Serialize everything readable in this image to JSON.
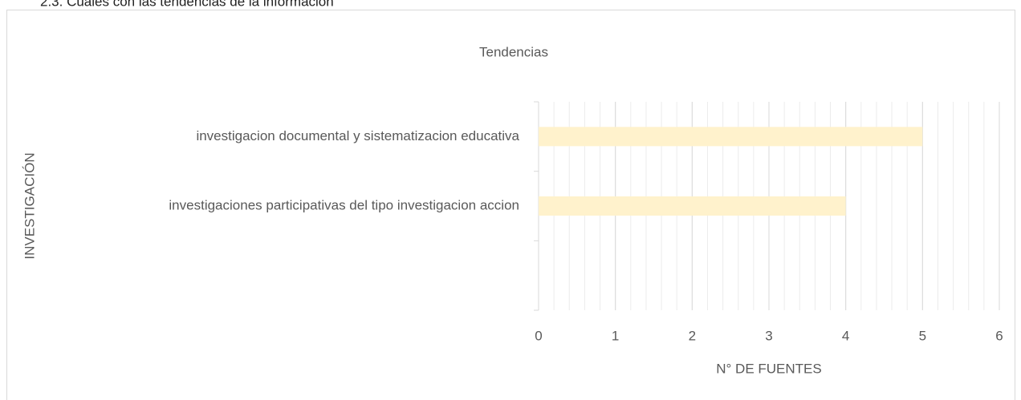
{
  "document": {
    "heading": "2.3. Cuales con las tendencias de la información"
  },
  "chart_data": {
    "type": "barh",
    "title": "Tendencias",
    "categories": [
      "investigacion documental y sistematizacion educativa",
      "investigaciones participativas del tipo investigacion accion",
      null
    ],
    "values": [
      5,
      4,
      null
    ],
    "color": "#fff2cc",
    "xlabel": "N° DE FUENTES",
    "ylabel": "INVESTIGACIÓN",
    "xlim": [
      0,
      6
    ],
    "xticks": [
      0,
      1,
      2,
      3,
      4,
      5,
      6
    ],
    "grid": true,
    "minor_grid": true
  }
}
